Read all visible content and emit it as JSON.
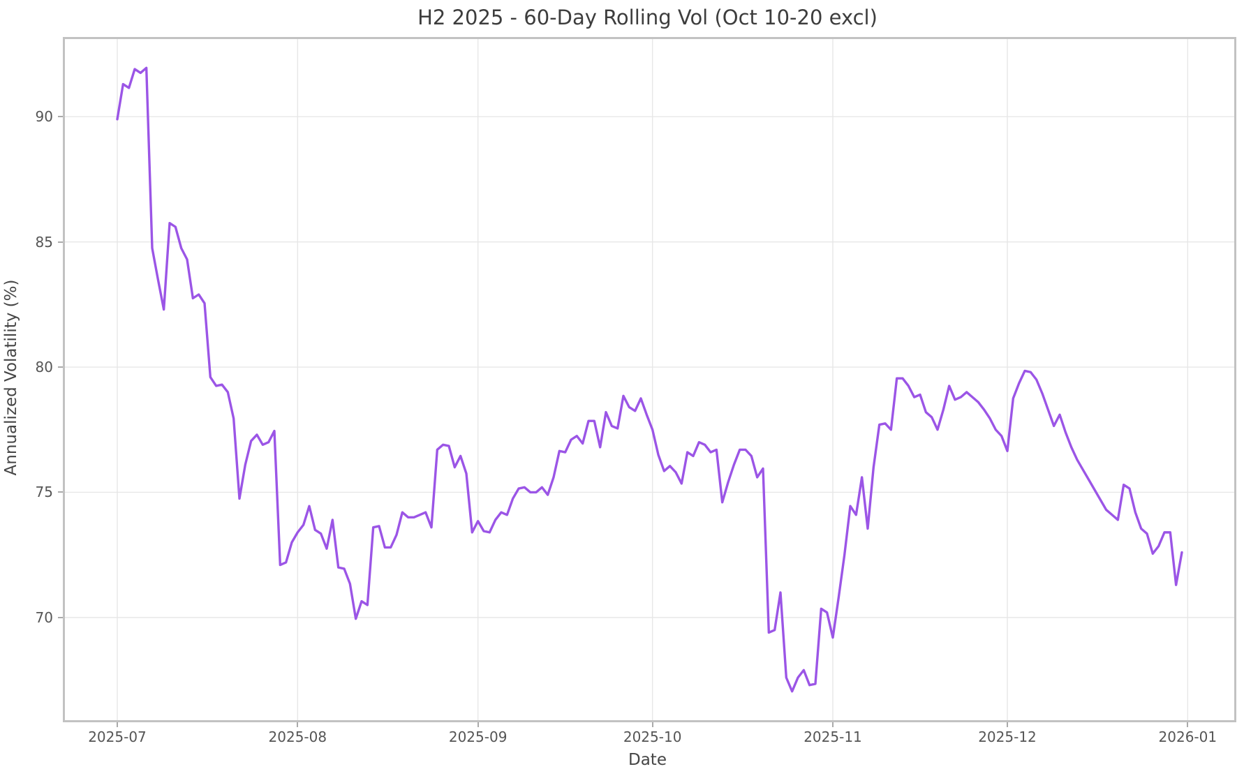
{
  "chart_data": {
    "type": "line",
    "title": "H2 2025 - 60-Day Rolling Vol (Oct 10-20 excl)",
    "xlabel": "Date",
    "ylabel": "Annualized Volatility (%)",
    "legend": null,
    "grid": true,
    "line_color": "#9b55e6",
    "grid_color": "#e7e7e7",
    "spine_color": "#c2c2c2",
    "tick_label_color": "#555555",
    "ylim": [
      65.9,
      93.1
    ],
    "xlim": [
      "2025-06-22",
      "2026-01-09"
    ],
    "y_ticks": [
      70,
      75,
      80,
      85,
      90
    ],
    "y_tick_labels": [
      "70",
      "75",
      "80",
      "85",
      "90"
    ],
    "x_tick_dates": [
      "2025-07-01",
      "2025-08-01",
      "2025-09-01",
      "2025-10-01",
      "2025-11-01",
      "2025-12-01",
      "2026-01-01"
    ],
    "x_tick_labels": [
      "2025-07",
      "2025-08",
      "2025-09",
      "2025-10",
      "2025-11",
      "2025-12",
      "2026-01"
    ],
    "series_name": "60-day rolling annualized volatility",
    "start_date": "2025-07-01",
    "frequency": "daily",
    "values": [
      89.9,
      91.3,
      91.15,
      91.9,
      91.75,
      91.95,
      84.75,
      83.5,
      82.3,
      85.75,
      85.6,
      84.75,
      84.3,
      82.75,
      82.9,
      82.55,
      79.6,
      79.25,
      79.3,
      79.0,
      77.95,
      74.75,
      76.1,
      77.05,
      77.3,
      76.9,
      77.0,
      77.45,
      72.1,
      72.2,
      73.0,
      73.4,
      73.7,
      74.45,
      73.5,
      73.35,
      72.75,
      73.9,
      72.0,
      71.95,
      71.35,
      69.95,
      70.65,
      70.5,
      73.6,
      73.65,
      72.8,
      72.8,
      73.3,
      74.2,
      74.0,
      74.0,
      74.1,
      74.2,
      73.6,
      76.7,
      76.9,
      76.85,
      76.0,
      76.45,
      75.75,
      73.4,
      73.85,
      73.45,
      73.4,
      73.9,
      74.2,
      74.1,
      74.75,
      75.15,
      75.2,
      75.0,
      75.0,
      75.2,
      74.9,
      75.6,
      76.65,
      76.6,
      77.1,
      77.25,
      76.95,
      77.85,
      77.85,
      76.8,
      78.2,
      77.65,
      77.55,
      78.85,
      78.4,
      78.25,
      78.75,
      78.1,
      77.5,
      76.5,
      75.85,
      76.05,
      75.8,
      75.35,
      76.6,
      76.45,
      77.0,
      76.9,
      76.6,
      76.7,
      74.6,
      75.4,
      76.1,
      76.7,
      76.7,
      76.45,
      75.6,
      75.95,
      69.4,
      69.5,
      71.0,
      67.6,
      67.05,
      67.6,
      67.9,
      67.3,
      67.35,
      70.35,
      70.2,
      69.2,
      70.8,
      72.5,
      74.45,
      74.1,
      75.6,
      73.55,
      76.0,
      77.7,
      77.75,
      77.5,
      79.55,
      79.55,
      79.25,
      78.8,
      78.9,
      78.2,
      78.0,
      77.5,
      78.3,
      79.25,
      78.7,
      78.8,
      79.0,
      78.8,
      78.6,
      78.3,
      77.95,
      77.5,
      77.25,
      76.65,
      78.75,
      79.35,
      79.85,
      79.8,
      79.5,
      78.95,
      78.3,
      77.65,
      78.1,
      77.4,
      76.8,
      76.3,
      75.9,
      75.5,
      75.1,
      74.7,
      74.3,
      74.1,
      73.9,
      75.3,
      75.15,
      74.2,
      73.55,
      73.35,
      72.55,
      72.85,
      73.4,
      73.4,
      71.3,
      72.6
    ]
  }
}
